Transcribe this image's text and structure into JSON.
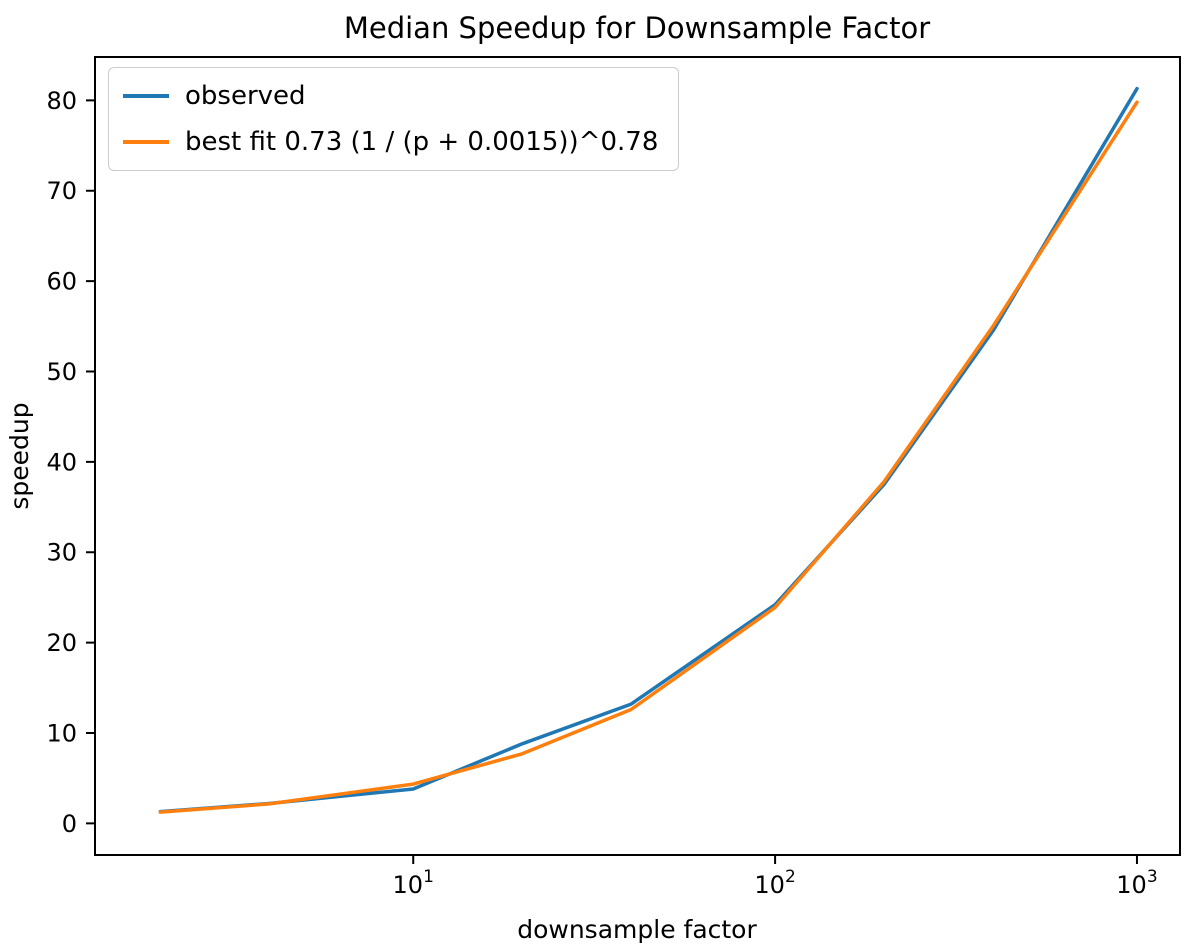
{
  "chart_data": {
    "type": "line",
    "title": "Median Speedup for Downsample Factor",
    "xlabel": "downsample factor",
    "ylabel": "speedup",
    "xscale": "log",
    "grid": false,
    "legend_position": "upper left",
    "x": [
      2,
      4,
      10,
      20,
      40,
      100,
      200,
      400,
      1000
    ],
    "series": [
      {
        "name": "observed",
        "color": "#1f77b4",
        "values": [
          1.3,
          2.2,
          3.8,
          8.8,
          13.2,
          24.2,
          37.5,
          54.5,
          81.3
        ]
      },
      {
        "name": "best fit 0.73 (1 / (p + 0.0015))^0.78",
        "color": "#ff7f0e",
        "values": [
          1.25,
          2.15,
          4.35,
          7.7,
          12.6,
          23.9,
          37.8,
          55.0,
          79.8
        ]
      }
    ],
    "xlim": [
      1.32,
      1315
    ],
    "ylim": [
      -3.5,
      84.8
    ],
    "xticks": [
      10,
      100,
      1000
    ],
    "yticks": [
      0,
      10,
      20,
      30,
      40,
      50,
      60,
      70,
      80
    ]
  }
}
